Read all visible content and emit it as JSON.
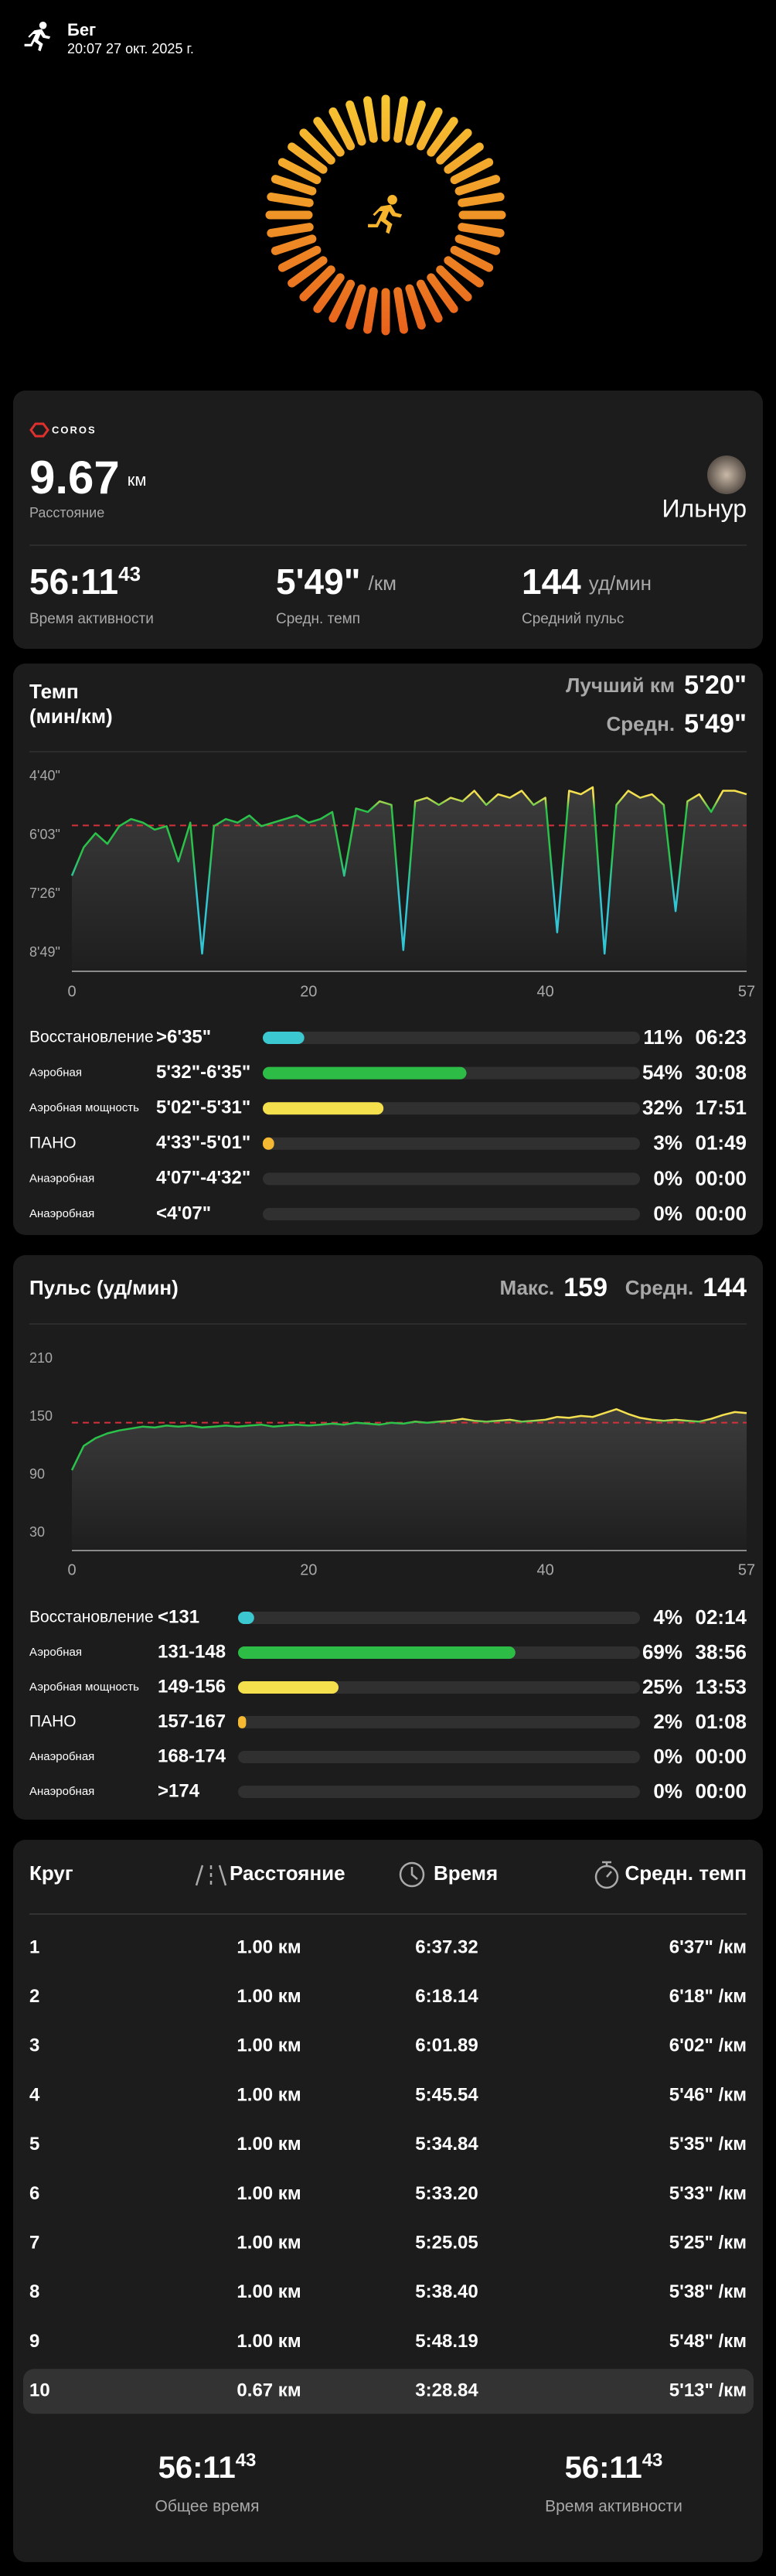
{
  "header": {
    "activity": "Бег",
    "datetime": "20:07 27 окт. 2025 г."
  },
  "summary": {
    "brand": "COROS",
    "distance": "9.67",
    "distance_unit": "км",
    "distance_label": "Расстояние",
    "user": "Ильнур",
    "stats": [
      {
        "value": "56:11",
        "sup": "43",
        "label": "Время активности"
      },
      {
        "value": "5'49\"",
        "unit": "/км",
        "label": "Средн. темп"
      },
      {
        "value": "144",
        "unit": "уд/мин",
        "label": "Средний пульс"
      }
    ]
  },
  "chart_data": [
    {
      "type": "line",
      "title": "Темп",
      "subtitle": "(мин/км)",
      "best_label": "Лучший км",
      "best": "5'20\"",
      "avg_label": "Средн.",
      "avg": "5'49\"",
      "x": [
        0,
        1,
        2,
        3,
        4,
        5,
        6,
        7,
        8,
        9,
        10,
        11,
        12,
        13,
        14,
        15,
        16,
        17,
        18,
        19,
        20,
        21,
        22,
        23,
        24,
        25,
        26,
        27,
        28,
        29,
        30,
        31,
        32,
        33,
        34,
        35,
        36,
        37,
        38,
        39,
        40,
        41,
        42,
        43,
        44,
        45,
        46,
        47,
        48,
        49,
        50,
        51,
        52,
        53,
        54,
        55,
        56,
        57
      ],
      "values": [
        420,
        380,
        360,
        375,
        350,
        340,
        345,
        355,
        350,
        400,
        345,
        530,
        350,
        340,
        345,
        335,
        350,
        345,
        340,
        335,
        345,
        340,
        330,
        420,
        325,
        330,
        315,
        320,
        525,
        315,
        310,
        320,
        310,
        315,
        300,
        320,
        305,
        310,
        300,
        320,
        310,
        500,
        300,
        305,
        295,
        530,
        320,
        300,
        310,
        305,
        320,
        470,
        315,
        305,
        330,
        300,
        300,
        305
      ],
      "xlim": [
        0,
        57
      ],
      "xticks": [
        0,
        20,
        40,
        57
      ],
      "ylim": [
        555,
        270
      ],
      "yticks": [
        {
          "value": 280,
          "label": "4'40\""
        },
        {
          "value": 363,
          "label": "6'03\""
        },
        {
          "value": 446,
          "label": "7'26\""
        },
        {
          "value": 529,
          "label": "8'49\""
        }
      ],
      "avg_line": 349,
      "avg_line_color": "#d8303a",
      "zones": {
        "names": [
          "Восстановление",
          "Аэробная",
          "Аэробная мощность",
          "ПАНО",
          "Анаэробная",
          "Анаэробная"
        ],
        "ranges": [
          ">6'35\"",
          "5'32\"-6'35\"",
          "5'02\"-5'31\"",
          "4'33\"-5'01\"",
          "4'07\"-4'32\"",
          "<4'07\""
        ],
        "percents": [
          11,
          54,
          32,
          3,
          0,
          0
        ],
        "value_labels": [
          "11%",
          "54%",
          "32%",
          "3%",
          "0%",
          "0%"
        ],
        "times": [
          "06:23",
          "30:08",
          "17:51",
          "01:49",
          "00:00",
          "00:00"
        ],
        "colors": [
          "#3cc8d0",
          "#2dbd46",
          "#f4e04d",
          "#f5b833",
          "#f08a2c",
          "#e5483a"
        ]
      }
    },
    {
      "type": "line",
      "title": "Пульс (уд/мин)",
      "max_label": "Макс.",
      "max": 159,
      "avg_label": "Средн.",
      "avg": 144,
      "x": [
        0,
        1,
        2,
        3,
        4,
        5,
        6,
        7,
        8,
        9,
        10,
        11,
        12,
        13,
        14,
        15,
        16,
        17,
        18,
        19,
        20,
        21,
        22,
        23,
        24,
        25,
        26,
        27,
        28,
        29,
        30,
        31,
        32,
        33,
        34,
        35,
        36,
        37,
        38,
        39,
        40,
        41,
        42,
        43,
        44,
        45,
        46,
        47,
        48,
        49,
        50,
        51,
        52,
        53,
        54,
        55,
        56,
        57
      ],
      "values": [
        95,
        120,
        128,
        133,
        136,
        138,
        140,
        139,
        141,
        140,
        141,
        139,
        140,
        141,
        140,
        141,
        142,
        140,
        141,
        142,
        141,
        142,
        143,
        142,
        144,
        143,
        142,
        144,
        143,
        145,
        144,
        145,
        146,
        148,
        146,
        145,
        146,
        147,
        145,
        146,
        147,
        150,
        149,
        151,
        150,
        154,
        158,
        153,
        149,
        147,
        146,
        147,
        146,
        145,
        148,
        152,
        155,
        154
      ],
      "xlim": [
        0,
        57
      ],
      "xticks": [
        0,
        20,
        40,
        57
      ],
      "ylim": [
        12,
        222
      ],
      "yticks": [
        30,
        90,
        150,
        210
      ],
      "avg_line": 144,
      "avg_line_color": "#d8303a",
      "zones": {
        "names": [
          "Восстановление",
          "Аэробная",
          "Аэробная мощность",
          "ПАНО",
          "Анаэробная",
          "Анаэробная"
        ],
        "ranges": [
          "<131",
          "131-148",
          "149-156",
          "157-167",
          "168-174",
          ">174"
        ],
        "percents": [
          4,
          69,
          25,
          2,
          0,
          0
        ],
        "value_labels": [
          "4%",
          "69%",
          "25%",
          "2%",
          "0%",
          "0%"
        ],
        "times": [
          "02:14",
          "38:56",
          "13:53",
          "01:08",
          "00:00",
          "00:00"
        ],
        "colors": [
          "#3cc8d0",
          "#2dbd46",
          "#f4e04d",
          "#f5b833",
          "#f08a2c",
          "#e5483a"
        ]
      }
    }
  ],
  "laps": {
    "headers": [
      "Круг",
      "Расстояние",
      "Время",
      "Средн. темп"
    ],
    "rows": [
      [
        "1",
        "1.00 км",
        "6:37.32",
        "6'37\" /км"
      ],
      [
        "2",
        "1.00 км",
        "6:18.14",
        "6'18\" /км"
      ],
      [
        "3",
        "1.00 км",
        "6:01.89",
        "6'02\" /км"
      ],
      [
        "4",
        "1.00 км",
        "5:45.54",
        "5'46\" /км"
      ],
      [
        "5",
        "1.00 км",
        "5:34.84",
        "5'35\" /км"
      ],
      [
        "6",
        "1.00 км",
        "5:33.20",
        "5'33\" /км"
      ],
      [
        "7",
        "1.00 км",
        "5:25.05",
        "5'25\" /км"
      ],
      [
        "8",
        "1.00 км",
        "5:38.40",
        "5'38\" /км"
      ],
      [
        "9",
        "1.00 км",
        "5:48.19",
        "5'48\" /км"
      ],
      [
        "10",
        "0.67 км",
        "3:28.84",
        "5'13\" /км"
      ]
    ],
    "footer": [
      {
        "time": "56:11",
        "sup": "43",
        "label": "Общее время"
      },
      {
        "time": "56:11",
        "sup": "43",
        "label": "Время активности"
      }
    ]
  }
}
